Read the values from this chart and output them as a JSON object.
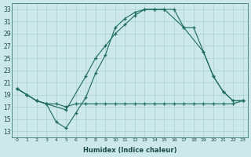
{
  "xlabel": "Humidex (Indice chaleur)",
  "bg_color": "#cce8e8",
  "grid_color": "#aacfcf",
  "line_color": "#1a6b5a",
  "xlim": [
    -0.5,
    23.5
  ],
  "ylim": [
    12,
    34
  ],
  "xticks": [
    0,
    1,
    2,
    3,
    4,
    5,
    6,
    7,
    8,
    9,
    10,
    11,
    12,
    13,
    14,
    15,
    16,
    17,
    18,
    19,
    20,
    21,
    22,
    23
  ],
  "yticks": [
    13,
    15,
    17,
    19,
    21,
    23,
    25,
    27,
    29,
    31,
    33
  ],
  "curve1_x": [
    0,
    1,
    2,
    3,
    5,
    7,
    8,
    9,
    10,
    11,
    12,
    13,
    14,
    15,
    17,
    18,
    19,
    20,
    21,
    22,
    23
  ],
  "curve1_y": [
    20,
    19,
    18,
    17.5,
    16.5,
    22,
    25,
    27,
    29,
    30.5,
    32,
    33,
    33,
    33,
    30,
    30,
    26,
    22,
    19.5,
    18,
    18
  ],
  "curve2_x": [
    0,
    1,
    2,
    3,
    4,
    5,
    6,
    7,
    8,
    9,
    10,
    11,
    12,
    13,
    14,
    15,
    16,
    17,
    19,
    20,
    21,
    22,
    23
  ],
  "curve2_y": [
    20,
    19,
    18,
    17.5,
    14.5,
    13.5,
    16,
    18.5,
    22.5,
    25.5,
    30,
    31.5,
    32.5,
    33,
    33,
    33,
    33,
    30,
    26,
    22,
    19.5,
    18,
    18
  ],
  "curve3_x": [
    0,
    1,
    2,
    3,
    4,
    5,
    6,
    7,
    8,
    9,
    10,
    11,
    12,
    13,
    14,
    15,
    16,
    17,
    18,
    19,
    20,
    21,
    22,
    23
  ],
  "curve3_y": [
    20,
    19,
    18,
    17.5,
    17.5,
    17,
    17.5,
    17.5,
    17.5,
    17.5,
    17.5,
    17.5,
    17.5,
    17.5,
    17.5,
    17.5,
    17.5,
    17.5,
    17.5,
    17.5,
    17.5,
    17.5,
    17.5,
    18
  ]
}
